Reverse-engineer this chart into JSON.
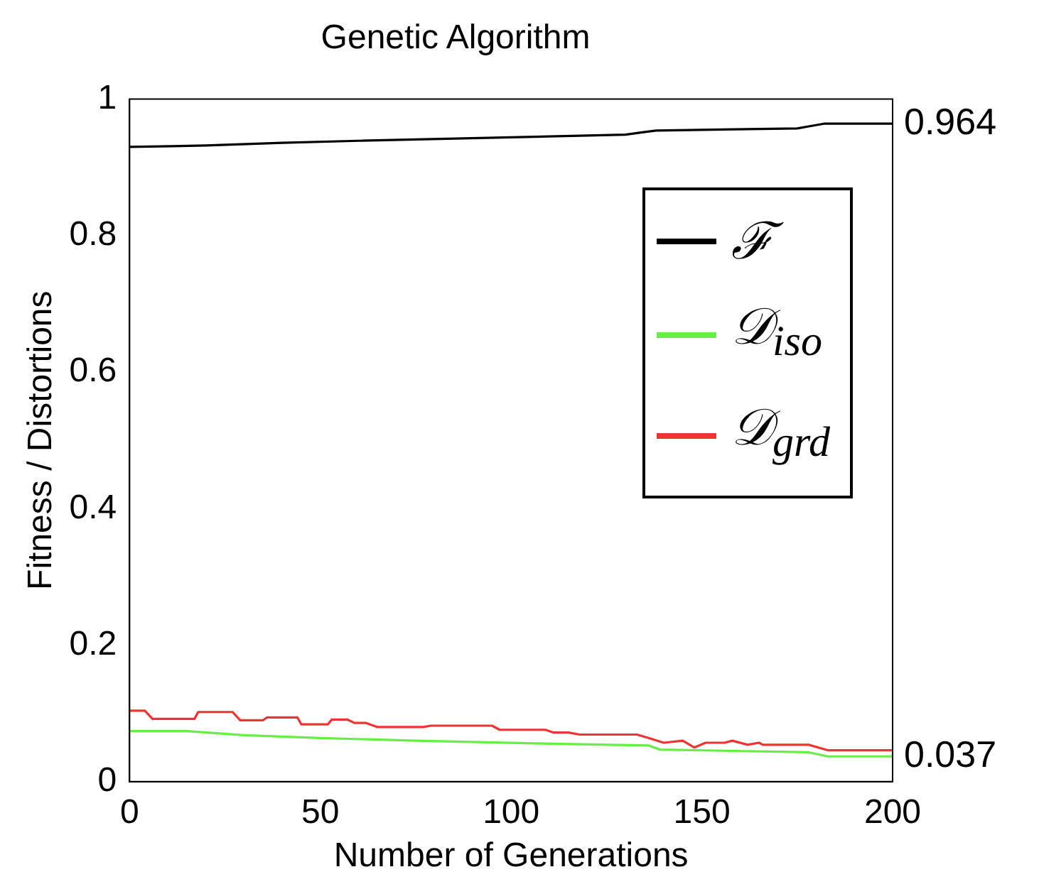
{
  "chart_data": {
    "type": "line",
    "title": "Genetic Algorithm",
    "xlabel": "Number of Generations",
    "ylabel": "Fitness / Distortions",
    "xlim": [
      0,
      200
    ],
    "ylim": [
      0,
      1
    ],
    "xticks": [
      0,
      50,
      100,
      150,
      200
    ],
    "yticks": [
      0,
      0.2,
      0.4,
      0.6,
      0.8,
      1
    ],
    "grid": false,
    "legend": "right",
    "marker": "none",
    "line_style": "solid",
    "series": [
      {
        "name": "ℱ",
        "color": "#000000",
        "x": [
          0,
          20,
          40,
          60,
          100,
          130,
          134,
          138,
          175,
          178,
          182,
          200
        ],
        "values": [
          0.93,
          0.932,
          0.936,
          0.939,
          0.944,
          0.948,
          0.951,
          0.954,
          0.957,
          0.96,
          0.964,
          0.964
        ]
      },
      {
        "name": "𝒟$_{iso}$",
        "color": "#66ee44",
        "x": [
          0,
          15,
          30,
          50,
          75,
          106,
          136,
          139,
          178,
          183,
          200
        ],
        "values": [
          0.074,
          0.074,
          0.068,
          0.064,
          0.06,
          0.056,
          0.053,
          0.047,
          0.043,
          0.037,
          0.037
        ]
      },
      {
        "name": "𝒟$_{grd}$",
        "color": "#ee3333",
        "x": [
          0,
          4,
          6,
          17,
          18,
          27,
          29,
          35,
          36,
          44,
          45,
          52,
          53,
          57,
          59,
          62,
          65,
          77,
          79,
          95,
          97,
          109,
          111,
          115,
          118,
          133,
          136,
          140,
          145,
          148,
          151,
          156,
          158,
          162,
          165,
          166,
          178,
          183,
          200
        ],
        "values": [
          0.104,
          0.104,
          0.092,
          0.092,
          0.102,
          0.102,
          0.09,
          0.09,
          0.094,
          0.094,
          0.084,
          0.084,
          0.091,
          0.091,
          0.086,
          0.086,
          0.08,
          0.08,
          0.082,
          0.082,
          0.076,
          0.076,
          0.072,
          0.072,
          0.069,
          0.069,
          0.064,
          0.057,
          0.06,
          0.05,
          0.057,
          0.057,
          0.06,
          0.054,
          0.057,
          0.054,
          0.054,
          0.046,
          0.046
        ]
      }
    ],
    "annotations": [
      {
        "text": "0.964",
        "x": 200,
        "y": 0.964
      },
      {
        "text": "0.037",
        "x": 200,
        "y": 0.037
      }
    ]
  }
}
